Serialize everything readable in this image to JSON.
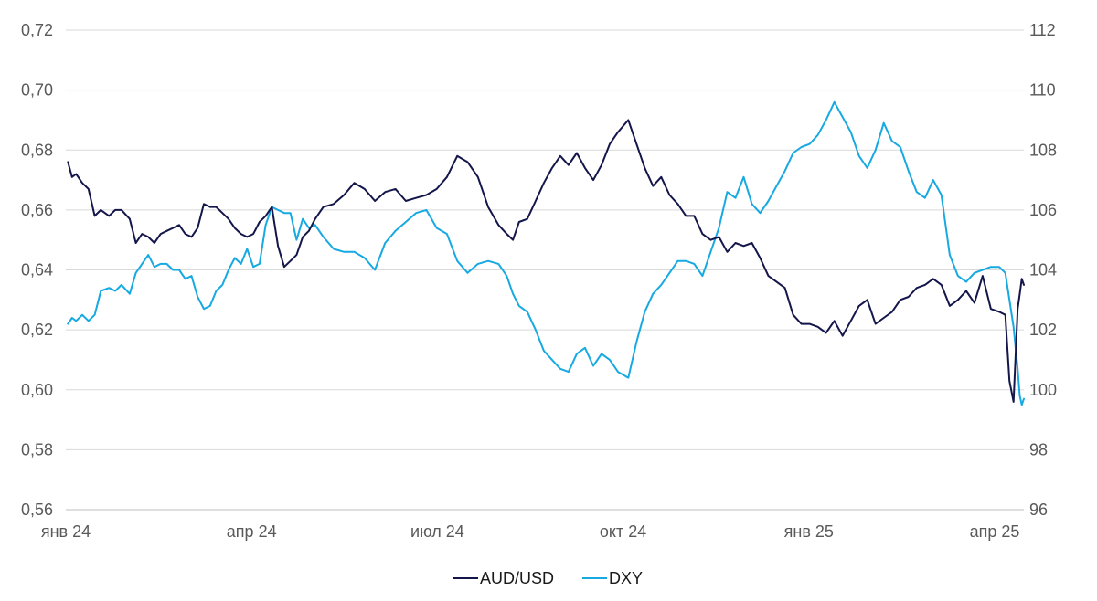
{
  "chart_data": {
    "type": "line",
    "title": "",
    "xlabel": "",
    "ylabel": "",
    "y2label": "",
    "grid": true,
    "legend_position": "bottom-center",
    "x_ticks": [
      "янв 24",
      "апр 24",
      "июл 24",
      "окт 24",
      "янв 25",
      "апр 25"
    ],
    "x_range": [
      "2024-01-01",
      "2025-04-10"
    ],
    "y_left": {
      "ylim": [
        0.56,
        0.72
      ],
      "ticks": [
        "0,56",
        "0,58",
        "0,60",
        "0,62",
        "0,64",
        "0,66",
        "0,68",
        "0,70",
        "0,72"
      ]
    },
    "y_right": {
      "ylim": [
        96,
        112
      ],
      "ticks": [
        "96",
        "98",
        "100",
        "102",
        "104",
        "106",
        "108",
        "110",
        "112"
      ]
    },
    "series": [
      {
        "name": "AUD/USD",
        "axis": "left",
        "color": "#14164a",
        "x": [
          "2024-01-02",
          "2024-01-04",
          "2024-01-06",
          "2024-01-09",
          "2024-01-12",
          "2024-01-15",
          "2024-01-18",
          "2024-01-22",
          "2024-01-25",
          "2024-01-28",
          "2024-02-01",
          "2024-02-04",
          "2024-02-07",
          "2024-02-10",
          "2024-02-13",
          "2024-02-16",
          "2024-02-19",
          "2024-02-22",
          "2024-02-25",
          "2024-02-28",
          "2024-03-02",
          "2024-03-05",
          "2024-03-08",
          "2024-03-11",
          "2024-03-14",
          "2024-03-17",
          "2024-03-20",
          "2024-03-23",
          "2024-03-26",
          "2024-03-29",
          "2024-04-01",
          "2024-04-04",
          "2024-04-07",
          "2024-04-10",
          "2024-04-13",
          "2024-04-16",
          "2024-04-19",
          "2024-04-22",
          "2024-04-25",
          "2024-04-28",
          "2024-05-01",
          "2024-05-05",
          "2024-05-10",
          "2024-05-15",
          "2024-05-20",
          "2024-05-25",
          "2024-05-30",
          "2024-06-04",
          "2024-06-09",
          "2024-06-14",
          "2024-06-19",
          "2024-06-24",
          "2024-06-29",
          "2024-07-04",
          "2024-07-09",
          "2024-07-14",
          "2024-07-19",
          "2024-07-24",
          "2024-07-29",
          "2024-08-02",
          "2024-08-05",
          "2024-08-08",
          "2024-08-12",
          "2024-08-16",
          "2024-08-20",
          "2024-08-24",
          "2024-08-28",
          "2024-09-01",
          "2024-09-05",
          "2024-09-09",
          "2024-09-13",
          "2024-09-17",
          "2024-09-21",
          "2024-09-25",
          "2024-09-30",
          "2024-10-04",
          "2024-10-08",
          "2024-10-12",
          "2024-10-16",
          "2024-10-20",
          "2024-10-24",
          "2024-10-28",
          "2024-11-01",
          "2024-11-05",
          "2024-11-09",
          "2024-11-13",
          "2024-11-17",
          "2024-11-21",
          "2024-11-25",
          "2024-11-29",
          "2024-12-03",
          "2024-12-07",
          "2024-12-11",
          "2024-12-15",
          "2024-12-19",
          "2024-12-23",
          "2024-12-27",
          "2024-12-31",
          "2025-01-04",
          "2025-01-08",
          "2025-01-12",
          "2025-01-16",
          "2025-01-20",
          "2025-01-24",
          "2025-01-28",
          "2025-02-01",
          "2025-02-05",
          "2025-02-09",
          "2025-02-13",
          "2025-02-17",
          "2025-02-21",
          "2025-02-25",
          "2025-03-01",
          "2025-03-05",
          "2025-03-09",
          "2025-03-13",
          "2025-03-17",
          "2025-03-21",
          "2025-03-25",
          "2025-03-29",
          "2025-04-01",
          "2025-04-03",
          "2025-04-05",
          "2025-04-07",
          "2025-04-08",
          "2025-04-09",
          "2025-04-10"
        ],
        "values": [
          0.676,
          0.671,
          0.672,
          0.669,
          0.667,
          0.658,
          0.66,
          0.658,
          0.66,
          0.66,
          0.657,
          0.649,
          0.652,
          0.651,
          0.649,
          0.652,
          0.653,
          0.654,
          0.655,
          0.652,
          0.651,
          0.654,
          0.662,
          0.661,
          0.661,
          0.659,
          0.657,
          0.654,
          0.652,
          0.651,
          0.652,
          0.656,
          0.658,
          0.661,
          0.648,
          0.641,
          0.643,
          0.645,
          0.651,
          0.653,
          0.657,
          0.661,
          0.662,
          0.665,
          0.669,
          0.667,
          0.663,
          0.666,
          0.667,
          0.663,
          0.664,
          0.665,
          0.667,
          0.671,
          0.678,
          0.676,
          0.671,
          0.661,
          0.655,
          0.652,
          0.65,
          0.656,
          0.657,
          0.663,
          0.669,
          0.674,
          0.678,
          0.675,
          0.679,
          0.674,
          0.67,
          0.675,
          0.682,
          0.686,
          0.69,
          0.682,
          0.674,
          0.668,
          0.671,
          0.665,
          0.662,
          0.658,
          0.658,
          0.652,
          0.65,
          0.651,
          0.646,
          0.649,
          0.648,
          0.649,
          0.644,
          0.638,
          0.636,
          0.634,
          0.625,
          0.622,
          0.622,
          0.621,
          0.619,
          0.623,
          0.618,
          0.623,
          0.628,
          0.63,
          0.622,
          0.624,
          0.626,
          0.63,
          0.631,
          0.634,
          0.635,
          0.637,
          0.635,
          0.628,
          0.63,
          0.633,
          0.629,
          0.638,
          0.627,
          0.626,
          0.625,
          0.603,
          0.596,
          0.627,
          0.632,
          0.637,
          0.635
        ]
      },
      {
        "name": "DXY",
        "axis": "right",
        "color": "#17a9e1",
        "x": [
          "2024-01-02",
          "2024-01-04",
          "2024-01-06",
          "2024-01-09",
          "2024-01-12",
          "2024-01-15",
          "2024-01-18",
          "2024-01-22",
          "2024-01-25",
          "2024-01-28",
          "2024-02-01",
          "2024-02-04",
          "2024-02-07",
          "2024-02-10",
          "2024-02-13",
          "2024-02-16",
          "2024-02-19",
          "2024-02-22",
          "2024-02-25",
          "2024-02-28",
          "2024-03-02",
          "2024-03-05",
          "2024-03-08",
          "2024-03-11",
          "2024-03-14",
          "2024-03-17",
          "2024-03-20",
          "2024-03-23",
          "2024-03-26",
          "2024-03-29",
          "2024-04-01",
          "2024-04-04",
          "2024-04-07",
          "2024-04-10",
          "2024-04-13",
          "2024-04-16",
          "2024-04-19",
          "2024-04-22",
          "2024-04-25",
          "2024-04-28",
          "2024-05-01",
          "2024-05-05",
          "2024-05-10",
          "2024-05-15",
          "2024-05-20",
          "2024-05-25",
          "2024-05-30",
          "2024-06-04",
          "2024-06-09",
          "2024-06-14",
          "2024-06-19",
          "2024-06-24",
          "2024-06-29",
          "2024-07-04",
          "2024-07-09",
          "2024-07-14",
          "2024-07-19",
          "2024-07-24",
          "2024-07-29",
          "2024-08-02",
          "2024-08-05",
          "2024-08-08",
          "2024-08-12",
          "2024-08-16",
          "2024-08-20",
          "2024-08-24",
          "2024-08-28",
          "2024-09-01",
          "2024-09-05",
          "2024-09-09",
          "2024-09-13",
          "2024-09-17",
          "2024-09-21",
          "2024-09-25",
          "2024-09-30",
          "2024-10-04",
          "2024-10-08",
          "2024-10-12",
          "2024-10-16",
          "2024-10-20",
          "2024-10-24",
          "2024-10-28",
          "2024-11-01",
          "2024-11-05",
          "2024-11-09",
          "2024-11-13",
          "2024-11-17",
          "2024-11-21",
          "2024-11-25",
          "2024-11-29",
          "2024-12-03",
          "2024-12-07",
          "2024-12-11",
          "2024-12-15",
          "2024-12-19",
          "2024-12-23",
          "2024-12-27",
          "2024-12-31",
          "2025-01-04",
          "2025-01-08",
          "2025-01-12",
          "2025-01-16",
          "2025-01-20",
          "2025-01-24",
          "2025-01-28",
          "2025-02-01",
          "2025-02-05",
          "2025-02-09",
          "2025-02-13",
          "2025-02-17",
          "2025-02-21",
          "2025-02-25",
          "2025-03-01",
          "2025-03-05",
          "2025-03-09",
          "2025-03-13",
          "2025-03-17",
          "2025-03-21",
          "2025-03-25",
          "2025-03-29",
          "2025-04-01",
          "2025-04-03",
          "2025-04-05",
          "2025-04-07",
          "2025-04-08",
          "2025-04-09",
          "2025-04-10"
        ],
        "values": [
          102.2,
          102.4,
          102.3,
          102.5,
          102.3,
          102.5,
          103.3,
          103.4,
          103.3,
          103.5,
          103.2,
          103.9,
          104.2,
          104.5,
          104.1,
          104.2,
          104.2,
          104.0,
          104.0,
          103.7,
          103.8,
          103.1,
          102.7,
          102.8,
          103.3,
          103.5,
          104.0,
          104.4,
          104.2,
          104.7,
          104.1,
          104.2,
          105.5,
          106.1,
          106.0,
          105.9,
          105.9,
          105.0,
          105.7,
          105.4,
          105.5,
          105.1,
          104.7,
          104.6,
          104.6,
          104.4,
          104.0,
          104.9,
          105.3,
          105.6,
          105.9,
          106.0,
          105.4,
          105.2,
          104.3,
          103.9,
          104.2,
          104.3,
          104.2,
          103.8,
          103.2,
          102.8,
          102.6,
          102.0,
          101.3,
          101.0,
          100.7,
          100.6,
          101.2,
          101.4,
          100.8,
          101.2,
          101.0,
          100.6,
          100.4,
          101.6,
          102.6,
          103.2,
          103.5,
          103.9,
          104.3,
          104.3,
          104.2,
          103.8,
          104.6,
          105.4,
          106.6,
          106.4,
          107.1,
          106.2,
          105.9,
          106.3,
          106.8,
          107.3,
          107.9,
          108.1,
          108.2,
          108.5,
          109.0,
          109.6,
          109.1,
          108.6,
          107.8,
          107.4,
          108.0,
          108.9,
          108.3,
          108.1,
          107.3,
          106.6,
          106.4,
          107.0,
          106.5,
          104.5,
          103.8,
          103.6,
          103.9,
          104.0,
          104.1,
          104.1,
          103.9,
          103.0,
          102.1,
          100.7,
          99.8,
          99.5,
          99.7
        ]
      }
    ]
  }
}
